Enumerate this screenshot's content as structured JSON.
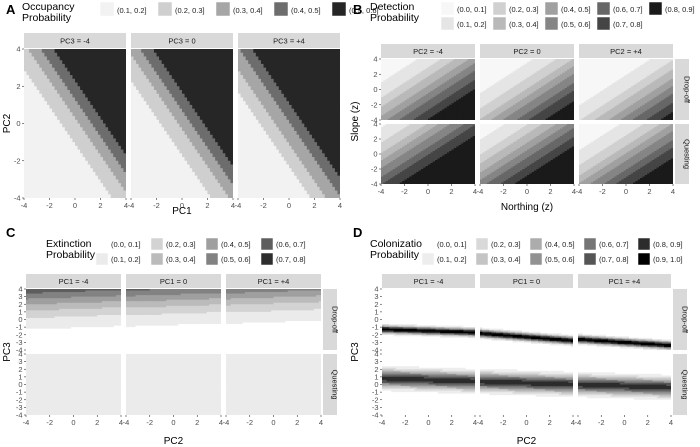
{
  "chart_data": [
    {
      "panel": "A",
      "type": "heatmap",
      "legend_title": [
        "Occupancy",
        "Probability"
      ],
      "legend_placement": "top",
      "legend_rows": 1,
      "legend_entries": [
        {
          "label": "(0.1, 0.2]",
          "color": "#f2f2f2"
        },
        {
          "label": "(0.2, 0.3]",
          "color": "#cfcfcf"
        },
        {
          "label": "(0.3, 0.4]",
          "color": "#a6a6a6"
        },
        {
          "label": "(0.4, 0.5]",
          "color": "#6d6d6d"
        },
        {
          "label": "(0.5, 0.6]",
          "color": "#262626"
        }
      ],
      "xlabel": "PC1",
      "ylabel": "PC2",
      "xlim": [
        -4,
        4
      ],
      "ylim": [
        -4,
        4
      ],
      "xticks": [
        -4,
        -2,
        0,
        2,
        4
      ],
      "yticks": [
        -4,
        -2,
        0,
        2,
        4
      ],
      "col_strips": [
        "PC3 = -4",
        "PC3 = 0",
        "PC3 = +4"
      ],
      "row_strips": [],
      "grid": false,
      "model": {
        "kind": "linear",
        "b0": -0.6931,
        "bx": 0.4,
        "by": 0.4
      }
    },
    {
      "panel": "B",
      "type": "heatmap",
      "legend_title": [
        "Detection",
        "Probability"
      ],
      "legend_placement": "top",
      "legend_rows": 2,
      "legend_entries": [
        {
          "label": "(0.0, 0.1]",
          "color": "#f7f7f7"
        },
        {
          "label": "(0.1, 0.2]",
          "color": "#e5e5e5"
        },
        {
          "label": "(0.2, 0.3]",
          "color": "#d0d0d0"
        },
        {
          "label": "(0.3, 0.4]",
          "color": "#b9b9b9"
        },
        {
          "label": "(0.4, 0.5]",
          "color": "#a0a0a0"
        },
        {
          "label": "(0.5, 0.6]",
          "color": "#858585"
        },
        {
          "label": "(0.6, 0.7]",
          "color": "#676767"
        },
        {
          "label": "(0.7, 0.8]",
          "color": "#454545"
        },
        {
          "label": "(0.8, 0.9]",
          "color": "#1a1a1a"
        }
      ],
      "xlabel": "Northing (z)",
      "ylabel": "Slope (z)",
      "xlim": [
        -4,
        4
      ],
      "ylim": [
        -4,
        4
      ],
      "xticks": [
        -4,
        -2,
        0,
        2,
        4
      ],
      "yticks": [
        -4,
        -2,
        0,
        2,
        4
      ],
      "col_strips": [
        "PC2 = -4",
        "PC2 = 0",
        "PC2 = +4"
      ],
      "row_strips": [
        "Drop-off",
        "Questing"
      ],
      "grid": false,
      "model": {
        "kind": "linear",
        "b0": [
          [
            -0.2,
            -0.8,
            -1.4
          ],
          [
            0.8,
            0.2,
            -0.4
          ]
        ],
        "bx": 0.4,
        "by": -0.4
      }
    },
    {
      "panel": "C",
      "type": "heatmap",
      "legend_title": [
        "Extinction",
        "Probability"
      ],
      "legend_placement": "top",
      "legend_rows": 2,
      "legend_entries": [
        {
          "label": "(0.0, 0.1]",
          "color": "#ffffff"
        },
        {
          "label": "(0.1, 0.2]",
          "color": "#ebebeb"
        },
        {
          "label": "(0.2, 0.3]",
          "color": "#d3d3d3"
        },
        {
          "label": "(0.3, 0.4]",
          "color": "#bbbbbb"
        },
        {
          "label": "(0.4, 0.5]",
          "color": "#9f9f9f"
        },
        {
          "label": "(0.5, 0.6]",
          "color": "#828282"
        },
        {
          "label": "(0.6, 0.7]",
          "color": "#5e5e5e"
        },
        {
          "label": "(0.7, 0.8]",
          "color": "#2e2e2e"
        }
      ],
      "xlabel": "PC2",
      "ylabel": "PC3",
      "xlim": [
        -4,
        4
      ],
      "ylim": [
        -4,
        4
      ],
      "xticks": [
        -4,
        -2,
        0,
        2,
        4
      ],
      "yticks": [
        -4,
        -3,
        -2,
        -1,
        0,
        1,
        2,
        3,
        4
      ],
      "col_strips": [
        "PC1 = -4",
        "PC1 = 0",
        "PC1 = +4"
      ],
      "row_strips": [
        "Drop-off",
        "Questing"
      ],
      "grid": false,
      "model": {
        "kind": "linear",
        "b0": [
          [
            -1.6,
            -1.8,
            -2.0
          ],
          [
            -1.8,
            -1.85,
            -1.9
          ]
        ],
        "bx": -0.03,
        "by": [
          0.55,
          0.02
        ]
      }
    },
    {
      "panel": "D",
      "type": "heatmap",
      "legend_title": [
        "Colonization",
        "Probability"
      ],
      "legend_placement": "top",
      "legend_rows": 2,
      "legend_entries": [
        {
          "label": "(0.0, 0.1]",
          "color": "#ffffff"
        },
        {
          "label": "(0.1, 0.2]",
          "color": "#ededed"
        },
        {
          "label": "(0.2, 0.3]",
          "color": "#d9d9d9"
        },
        {
          "label": "(0.3, 0.4]",
          "color": "#c4c4c4"
        },
        {
          "label": "(0.4, 0.5]",
          "color": "#acacac"
        },
        {
          "label": "(0.5, 0.6]",
          "color": "#929292"
        },
        {
          "label": "(0.6, 0.7]",
          "color": "#757575"
        },
        {
          "label": "(0.7, 0.8]",
          "color": "#555555"
        },
        {
          "label": "(0.8, 0.9]",
          "color": "#2c2c2c"
        },
        {
          "label": "(0.9, 1.0]",
          "color": "#000000"
        }
      ],
      "xlabel": "PC2",
      "ylabel": "PC3",
      "xlim": [
        -4,
        4
      ],
      "ylim": [
        -4,
        4
      ],
      "xticks": [
        -4,
        -2,
        0,
        2,
        4
      ],
      "yticks": [
        -4,
        -3,
        -2,
        -1,
        0,
        1,
        2,
        3,
        4
      ],
      "col_strips": [
        "PC1 = -4",
        "PC1 = 0",
        "PC1 = +4"
      ],
      "row_strips": [
        "Drop-off",
        "Questing"
      ],
      "grid": false,
      "model": {
        "kind": "band",
        "center": [
          [
            -1.5,
            -2.3,
            -3.0
          ],
          [
            0.6,
            0.2,
            -0.2
          ]
        ],
        "slope": [
          [
            -0.05,
            -0.12,
            -0.1
          ],
          [
            -0.05,
            -0.05,
            -0.05
          ]
        ],
        "width": [
          [
            0.7,
            0.7,
            0.7
          ],
          [
            1.6,
            1.6,
            1.6
          ]
        ],
        "pmax": [
          [
            0.99,
            0.99,
            0.99
          ],
          [
            0.85,
            0.85,
            0.85
          ]
        ]
      }
    }
  ]
}
